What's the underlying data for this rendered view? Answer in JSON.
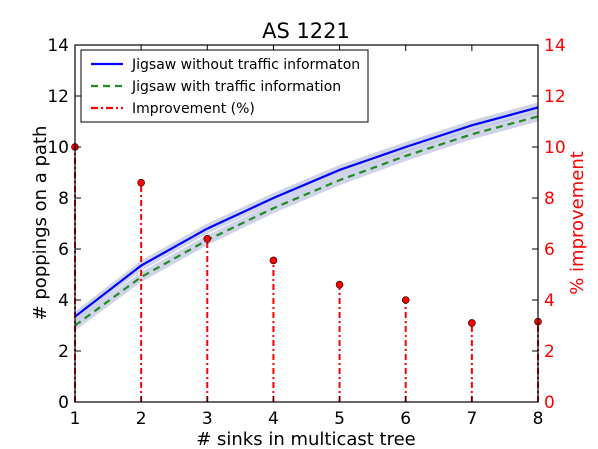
{
  "chart_data": {
    "type": "line",
    "title": "AS 1221",
    "xlabel": "# sinks in multicast tree",
    "ylabel_left": "# poppings on a path",
    "ylabel_right": "% improvement",
    "xlim": [
      1,
      8
    ],
    "ylim_left": [
      0,
      14
    ],
    "ylim_right": [
      0,
      14
    ],
    "x_ticks": [
      "1",
      "2",
      "3",
      "4",
      "5",
      "6",
      "7",
      "8"
    ],
    "y_ticks_left": [
      "0",
      "2",
      "4",
      "6",
      "8",
      "10",
      "12",
      "14"
    ],
    "y_ticks_right": [
      "0",
      "2",
      "4",
      "6",
      "8",
      "10",
      "12",
      "14"
    ],
    "grid": false,
    "legend_position": "top-left",
    "x": [
      1,
      2,
      3,
      4,
      5,
      6,
      7,
      8
    ],
    "series": [
      {
        "name": "Jigsaw without traffic informaton",
        "style": "solid",
        "color": "#0000ff",
        "axis": "left",
        "values": [
          3.35,
          5.35,
          6.8,
          8.0,
          9.1,
          10.0,
          10.85,
          11.55
        ],
        "band": 0.2
      },
      {
        "name": "Jigsaw with traffic information",
        "style": "dashed",
        "color": "#228b22",
        "axis": "left",
        "values": [
          3.0,
          4.9,
          6.35,
          7.6,
          8.7,
          9.65,
          10.5,
          11.2
        ],
        "band": 0.2
      },
      {
        "name": "Improvement (%)",
        "style": "dashdot-stem",
        "color": "#ff0000",
        "axis": "right",
        "values": [
          10.0,
          8.6,
          6.4,
          5.55,
          4.6,
          4.0,
          3.1,
          3.15
        ]
      }
    ],
    "colors": {
      "left_axis": "#000000",
      "right_axis": "#ff0000",
      "band": "#b0b8d8"
    }
  }
}
